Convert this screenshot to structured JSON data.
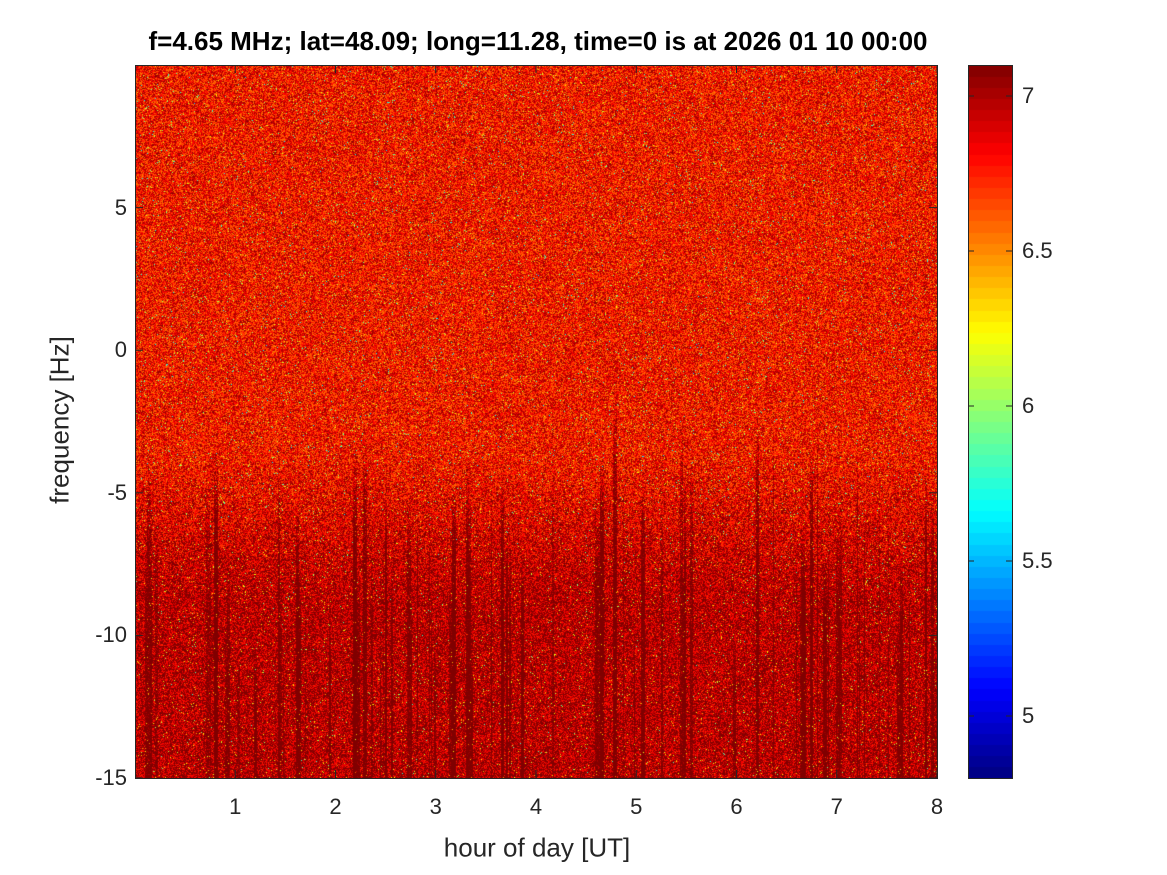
{
  "chart_data": {
    "type": "heatmap",
    "title": "f=4.65 MHz;  lat=48.09; long=11.28, time=0 is at 2026 01 10 00:00",
    "xlabel": "hour of day [UT]",
    "ylabel": "frequency [Hz]",
    "xlim": [
      0,
      8
    ],
    "ylim": [
      -15,
      10
    ],
    "x_ticks": [
      "1",
      "2",
      "3",
      "4",
      "5",
      "6",
      "7",
      "8"
    ],
    "x_tick_values": [
      1,
      2,
      3,
      4,
      5,
      6,
      7,
      8
    ],
    "y_ticks": [
      "5",
      "0",
      "-5",
      "-10",
      "-15"
    ],
    "y_tick_values": [
      5,
      0,
      -5,
      -10,
      -15
    ],
    "colorbar": {
      "colormap": "jet",
      "clim": [
        4.8,
        7.1
      ],
      "ticks": [
        "7",
        "6.5",
        "6",
        "5.5",
        "5"
      ],
      "tick_values": [
        7,
        6.5,
        6,
        5.5,
        5
      ]
    },
    "z_description_levels": {
      "background": 6.8,
      "lower_band_dark_red": 7.0
    },
    "grid": false
  }
}
